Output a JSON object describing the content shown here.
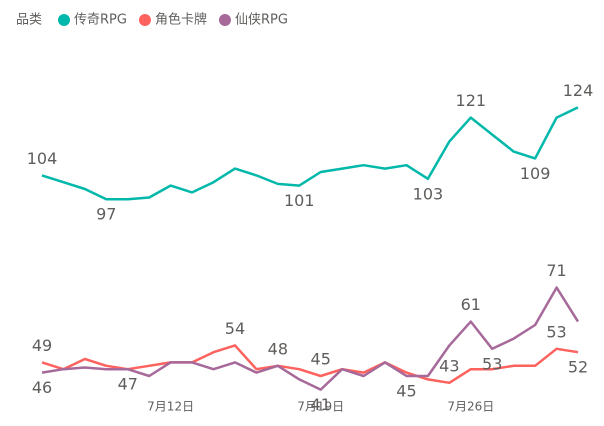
{
  "chart_data": {
    "type": "line",
    "legend_title": "品类",
    "categories": [
      null,
      null,
      null,
      null,
      null,
      null,
      "7月12日",
      null,
      null,
      null,
      null,
      null,
      null,
      "7月19日",
      null,
      null,
      null,
      null,
      null,
      null,
      "7月26日",
      null,
      null,
      null,
      null,
      null
    ],
    "series": [
      {
        "name": "传奇RPG",
        "color": "#01b8aa",
        "values": [
          104,
          102,
          100,
          97,
          97,
          97.5,
          101,
          99,
          102,
          106,
          104,
          101.5,
          101,
          105,
          106,
          107,
          106,
          107,
          103,
          114,
          121,
          116,
          111,
          109,
          121,
          124
        ]
      },
      {
        "name": "角色卡牌",
        "color": "#fd625e",
        "values": [
          49,
          47,
          50,
          48,
          47,
          48,
          49,
          49,
          52,
          54,
          47,
          48,
          47,
          45,
          47,
          46,
          49,
          46,
          44,
          43,
          47,
          47,
          48,
          48,
          53,
          52
        ]
      },
      {
        "name": "仙侠RPG",
        "color": "#a66999",
        "values": [
          46,
          47,
          47.5,
          47,
          47,
          45,
          49,
          49,
          47,
          49,
          46,
          48,
          44,
          41,
          47,
          45,
          49,
          45,
          45,
          54,
          61,
          53,
          56,
          60,
          71,
          61
        ]
      }
    ],
    "ylim": [
      40,
      130
    ],
    "legend": "top-left"
  }
}
